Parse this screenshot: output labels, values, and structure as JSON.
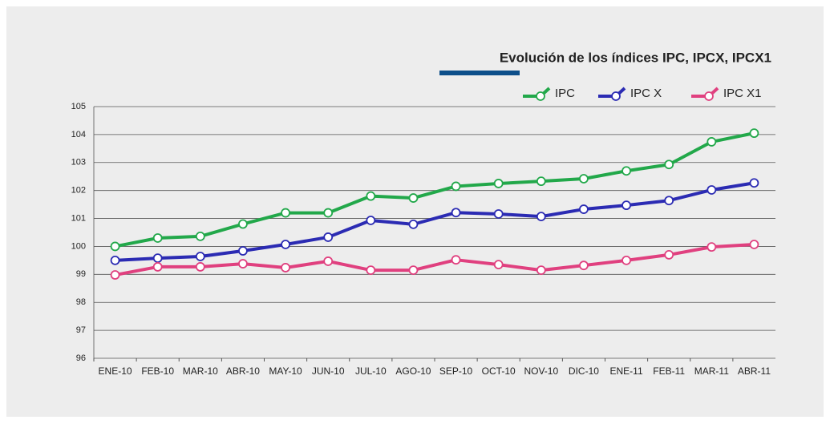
{
  "chart_data": {
    "type": "line",
    "title": "Evolución de los índices IPC, IPCX, IPCX1",
    "categories": [
      "ENE-10",
      "FEB-10",
      "MAR-10",
      "ABR-10",
      "MAY-10",
      "JUN-10",
      "JUL-10",
      "AGO-10",
      "SEP-10",
      "OCT-10",
      "NOV-10",
      "DIC-10",
      "ENE-11",
      "FEB-11",
      "MAR-11",
      "ABR-11"
    ],
    "series": [
      {
        "name": "IPC",
        "color": "#22a84a",
        "values": [
          100.0,
          100.3,
          100.36,
          100.8,
          101.2,
          101.2,
          101.8,
          101.73,
          102.15,
          102.25,
          102.33,
          102.42,
          102.7,
          102.93,
          103.74,
          104.05
        ]
      },
      {
        "name": "IPC X",
        "color": "#2b2bb3",
        "values": [
          99.5,
          99.58,
          99.64,
          99.84,
          100.07,
          100.33,
          100.93,
          100.79,
          101.21,
          101.16,
          101.07,
          101.33,
          101.47,
          101.64,
          102.02,
          102.27
        ]
      },
      {
        "name": "IPC X1",
        "color": "#e0407f",
        "values": [
          98.98,
          99.27,
          99.27,
          99.38,
          99.24,
          99.47,
          99.15,
          99.15,
          99.52,
          99.35,
          99.15,
          99.32,
          99.5,
          99.7,
          99.98,
          100.07
        ]
      }
    ],
    "ylim": [
      96,
      105
    ],
    "yticks": [
      96,
      97,
      98,
      99,
      100,
      101,
      102,
      103,
      104,
      105
    ],
    "grid": true,
    "legend": "top-right"
  }
}
